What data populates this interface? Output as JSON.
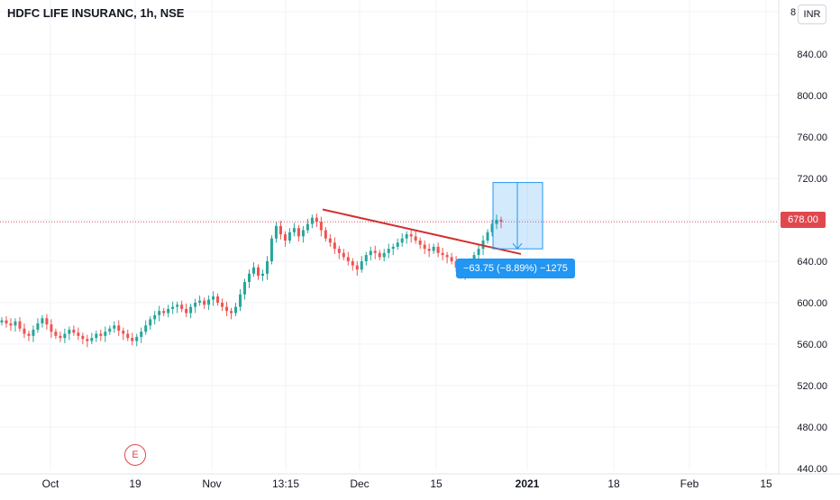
{
  "chart_data": {
    "type": "candlestick",
    "title": "HDFC LIFE INSURANC, 1h, NSE",
    "currency": "INR",
    "ylim": [
      440,
      880
    ],
    "y_ticks": [
      {
        "value": 840,
        "label": "840.00"
      },
      {
        "value": 800,
        "label": "800.00"
      },
      {
        "value": 760,
        "label": "760.00"
      },
      {
        "value": 720,
        "label": "720.00"
      },
      {
        "value": 640,
        "label": "640.00"
      },
      {
        "value": 600,
        "label": "600.00"
      },
      {
        "value": 560,
        "label": "560.00"
      },
      {
        "value": 520,
        "label": "520.00"
      },
      {
        "value": 480,
        "label": "480.00"
      },
      {
        "value": 440,
        "label": "440.00"
      }
    ],
    "top_tick_label": "8",
    "x_ticks": [
      "Oct",
      "19",
      "Nov",
      "13:15",
      "Dec",
      "15",
      "2021",
      "18",
      "Feb",
      "15"
    ],
    "last_price": {
      "value": 678,
      "label": "678.00",
      "color": "#e0484d"
    },
    "close_series": [
      583,
      580,
      578,
      582,
      575,
      570,
      568,
      574,
      580,
      585,
      579,
      572,
      568,
      566,
      570,
      574,
      571,
      568,
      565,
      563,
      566,
      570,
      568,
      572,
      575,
      578,
      573,
      570,
      566,
      563,
      567,
      572,
      578,
      584,
      588,
      592,
      590,
      594,
      596,
      598,
      594,
      590,
      596,
      600,
      602,
      598,
      603,
      606,
      600,
      596,
      592,
      590,
      596,
      608,
      620,
      628,
      634,
      626,
      628,
      640,
      662,
      674,
      666,
      660,
      668,
      672,
      664,
      670,
      676,
      682,
      678,
      670,
      662,
      658,
      652,
      648,
      644,
      640,
      636,
      632,
      640,
      646,
      650,
      648,
      644,
      648,
      652,
      654,
      658,
      662,
      666,
      664,
      660,
      656,
      652,
      650,
      654,
      648,
      646,
      644,
      640,
      634,
      628,
      632,
      638,
      646,
      652,
      660,
      668,
      676,
      680,
      678
    ],
    "trendline": {
      "from": {
        "x": "Nov 23",
        "y": 690
      },
      "to": {
        "x": "Dec 30",
        "y": 647
      },
      "color": "#d32f2f"
    },
    "measurement": {
      "top": 716,
      "bottom": 652,
      "label": "−63.75 (−8.89%) −1275",
      "color": "#2196f3"
    },
    "earnings_marker": "E",
    "up_color": "#26a69a",
    "down_color": "#ef5350"
  }
}
